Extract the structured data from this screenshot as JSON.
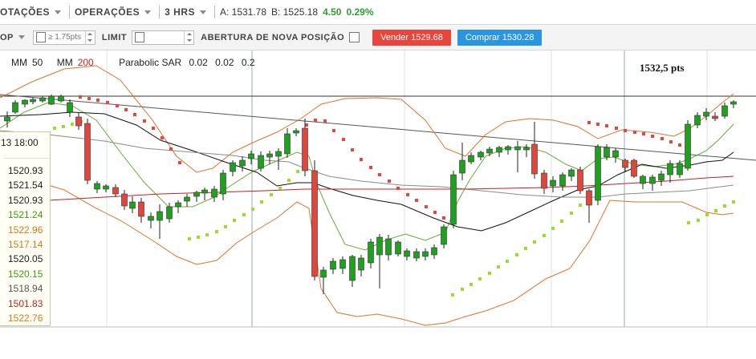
{
  "toolbar": {
    "cotacoes": "OTAÇÕES",
    "operacoes": "OPERAÇÕES",
    "timeframe": "3 HRS",
    "ask": "A: 1531.78",
    "bid": "B: 1525.18",
    "change": "4.50",
    "change_pct": "0.29%"
  },
  "order_bar": {
    "op_label": "OP",
    "stop_placeholder": "≥ 1.75pts",
    "limit_label": "LIMIT",
    "new_position_label": "ABERTURA DE NOVA POSIÇÃO",
    "sell_label": "Vender 1529.68",
    "buy_label": "Comprar 1530.28"
  },
  "legend": {
    "mm1_label": "MM",
    "mm1_value": "50",
    "mm2_label": "MM",
    "mm2_value": "200",
    "sar_label": "Parabolic SAR",
    "sar_p1": "0.02",
    "sar_p2": "0.02",
    "sar_p3": "0.2"
  },
  "price_marker": "1532,5 pts",
  "info_box": {
    "date": "13 18:00",
    "values": [
      {
        "text": "1520.93",
        "color": "#222222"
      },
      {
        "text": "1521.54",
        "color": "#222222"
      },
      {
        "text": "1520.93",
        "color": "#222222"
      },
      {
        "text": "1521.24",
        "color": "#3c9a18"
      },
      {
        "text": "1522.96",
        "color": "#d07a1c"
      },
      {
        "text": "1517.14",
        "color": "#d07a1c"
      },
      {
        "text": "1520.05",
        "color": "#222222"
      },
      {
        "text": "1520.15",
        "color": "#3c9a18"
      },
      {
        "text": "1518.94",
        "color": "#555555"
      },
      {
        "text": "1501.83",
        "color": "#c42222"
      },
      {
        "text": "1522.76",
        "color": "#d07a1c"
      }
    ]
  },
  "colors": {
    "bull": "#1fa01f",
    "bear": "#e0463c",
    "sar_up": "#99dd33",
    "sar_down": "#e8453c",
    "bollinger": "#d9742a",
    "ma_short": "#6aa83a",
    "ma_50": "#111111",
    "ma_200": "#c42222",
    "ma_grey": "#8a8a8a",
    "sell_button": "#e8453c",
    "buy_button": "#2a95e0"
  }
}
